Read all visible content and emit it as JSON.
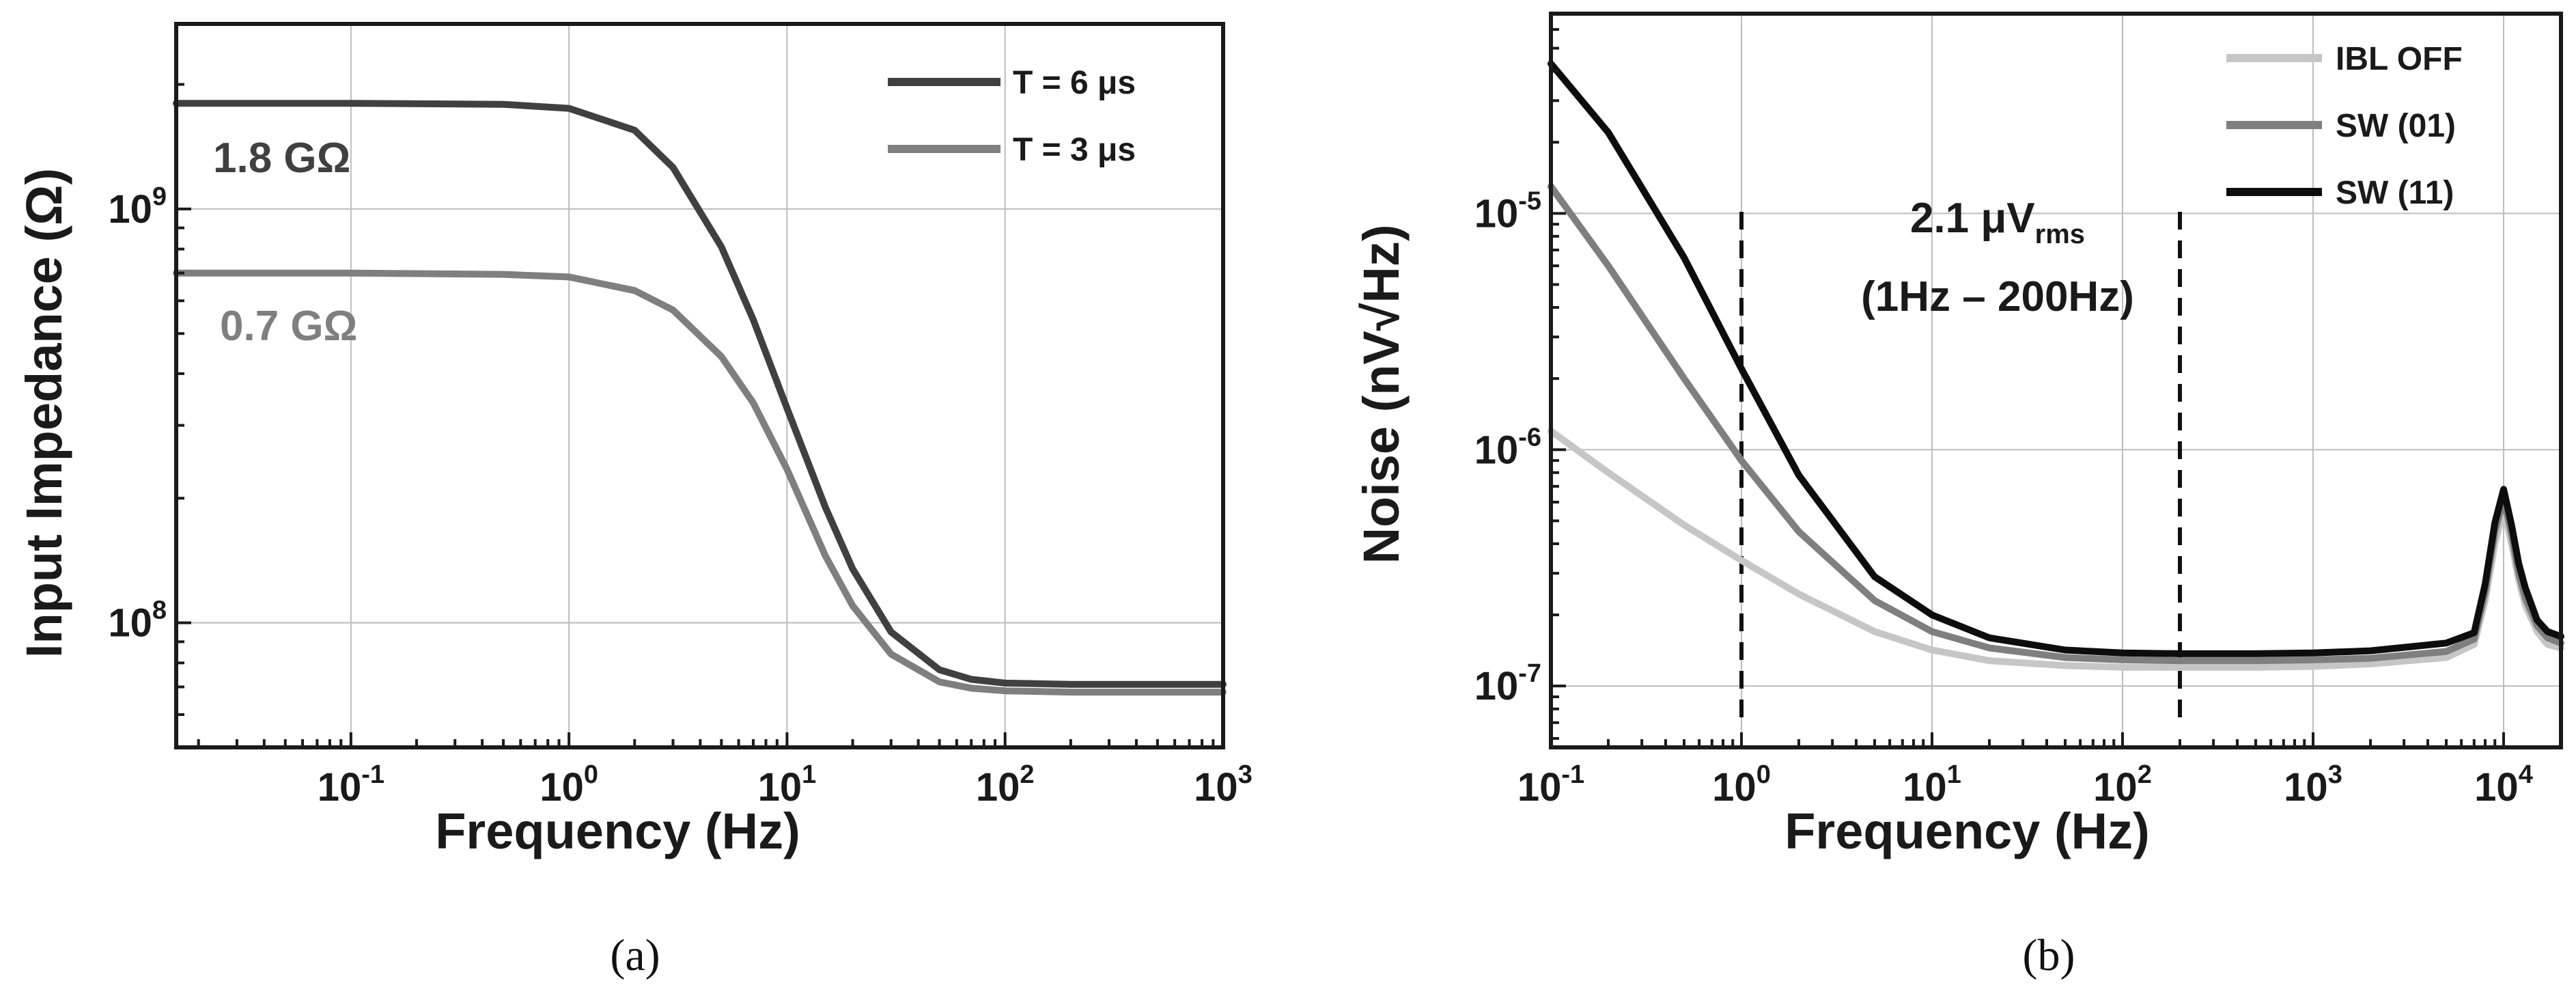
{
  "chart_data": [
    {
      "type": "line",
      "caption": "(a)",
      "xlabel": "Frequency (Hz)",
      "ylabel": "Input Impedance (Ω)",
      "xscale": "log",
      "yscale": "log",
      "xlim": [
        0.0158,
        1000
      ],
      "ylim": [
        50000000,
        2800000000
      ],
      "grid": true,
      "legend_position": "top-right",
      "x_ticks": [
        {
          "base": "10",
          "exp": "-1"
        },
        {
          "base": "10",
          "exp": "0"
        },
        {
          "base": "10",
          "exp": "1"
        },
        {
          "base": "10",
          "exp": "2"
        },
        {
          "base": "10",
          "exp": "3"
        }
      ],
      "y_ticks": [
        {
          "base": "10",
          "exp": "8"
        },
        {
          "base": "10",
          "exp": "9"
        }
      ],
      "series": [
        {
          "name": "T = 6 μs",
          "color": "#404040",
          "x": [
            0.0158,
            0.1,
            0.5,
            1,
            2,
            3,
            5,
            7,
            10,
            15,
            20,
            30,
            50,
            70,
            100,
            200,
            500,
            1000
          ],
          "y": [
            1800000000,
            1800000000,
            1790000000,
            1750000000,
            1550000000,
            1260000000,
            810000000,
            540000000,
            330000000,
            190000000,
            135000000,
            95000000,
            77000000,
            73000000,
            71500000,
            71000000,
            71000000,
            71000000
          ]
        },
        {
          "name": "T = 3 μs",
          "color": "#7f7f7f",
          "x": [
            0.0158,
            0.1,
            0.5,
            1,
            2,
            3,
            5,
            7,
            10,
            15,
            20,
            30,
            50,
            70,
            100,
            200,
            500,
            1000
          ],
          "y": [
            700000000,
            700000000,
            695000000,
            685000000,
            635000000,
            570000000,
            440000000,
            340000000,
            235000000,
            145000000,
            110000000,
            84000000,
            72000000,
            69500000,
            68500000,
            68000000,
            68000000,
            68000000
          ]
        }
      ],
      "annotations": [
        {
          "text": "1.8 GΩ",
          "color": "#404040"
        },
        {
          "text": "0.7 GΩ",
          "color": "#7f7f7f"
        }
      ]
    },
    {
      "type": "line",
      "caption": "(b)",
      "xlabel": "Frequency (Hz)",
      "ylabel": "Noise (nV√Hz)",
      "xscale": "log",
      "yscale": "log",
      "xlim": [
        0.1,
        20000
      ],
      "ylim": [
        5.5e-08,
        7e-05
      ],
      "grid": true,
      "legend_position": "top-right",
      "x_ticks": [
        {
          "base": "10",
          "exp": "-1"
        },
        {
          "base": "10",
          "exp": "0"
        },
        {
          "base": "10",
          "exp": "1"
        },
        {
          "base": "10",
          "exp": "2"
        },
        {
          "base": "10",
          "exp": "3"
        },
        {
          "base": "10",
          "exp": "4"
        }
      ],
      "y_ticks": [
        {
          "base": "10",
          "exp": "-7"
        },
        {
          "base": "10",
          "exp": "-6"
        },
        {
          "base": "10",
          "exp": "-5"
        }
      ],
      "vlines": [
        1,
        200
      ],
      "series": [
        {
          "name": "IBL OFF",
          "color": "#c6c6c6",
          "x": [
            0.1,
            0.2,
            0.5,
            1,
            2,
            5,
            10,
            20,
            50,
            100,
            200,
            500,
            1000,
            2000,
            5000,
            7000,
            8000,
            9000,
            10000,
            11000,
            12000,
            13000,
            15000,
            17000,
            20000
          ],
          "y": [
            1.2e-06,
            8e-07,
            4.8e-07,
            3.4e-07,
            2.45e-07,
            1.7e-07,
            1.42e-07,
            1.28e-07,
            1.22e-07,
            1.2e-07,
            1.2e-07,
            1.2e-07,
            1.21e-07,
            1.24e-07,
            1.32e-07,
            1.5e-07,
            2.3e-07,
            4e-07,
            5.6e-07,
            4e-07,
            2.8e-07,
            2.2e-07,
            1.7e-07,
            1.5e-07,
            1.45e-07
          ]
        },
        {
          "name": "SW (01)",
          "color": "#7f7f7f",
          "x": [
            0.1,
            0.2,
            0.5,
            1,
            2,
            5,
            10,
            20,
            50,
            100,
            200,
            500,
            1000,
            2000,
            5000,
            7000,
            8000,
            9000,
            10000,
            11000,
            12000,
            13000,
            15000,
            17000,
            20000
          ],
          "y": [
            1.3e-05,
            6e-06,
            2e-06,
            9e-07,
            4.5e-07,
            2.3e-07,
            1.7e-07,
            1.45e-07,
            1.32e-07,
            1.29e-07,
            1.28e-07,
            1.28e-07,
            1.29e-07,
            1.31e-07,
            1.4e-07,
            1.58e-07,
            2.5e-07,
            4.5e-07,
            6.2e-07,
            4.4e-07,
            3e-07,
            2.35e-07,
            1.8e-07,
            1.6e-07,
            1.52e-07
          ]
        },
        {
          "name": "SW (11)",
          "color": "#0d0d0d",
          "x": [
            0.1,
            0.2,
            0.5,
            1,
            2,
            5,
            10,
            20,
            50,
            100,
            200,
            500,
            1000,
            2000,
            5000,
            7000,
            8000,
            9000,
            10000,
            11000,
            12000,
            13000,
            15000,
            17000,
            20000
          ],
          "y": [
            4.3e-05,
            2.2e-05,
            6.5e-06,
            2.2e-06,
            7.8e-07,
            2.9e-07,
            2e-07,
            1.6e-07,
            1.42e-07,
            1.38e-07,
            1.37e-07,
            1.37e-07,
            1.38e-07,
            1.41e-07,
            1.52e-07,
            1.68e-07,
            2.7e-07,
            4.9e-07,
            6.8e-07,
            4.8e-07,
            3.3e-07,
            2.6e-07,
            1.9e-07,
            1.7e-07,
            1.62e-07
          ]
        }
      ],
      "annotations": [
        {
          "line1_main": "2.1 μV",
          "line1_sub": "rms",
          "line2": "(1Hz – 200Hz)",
          "color": "#1a1a1a"
        }
      ]
    }
  ]
}
